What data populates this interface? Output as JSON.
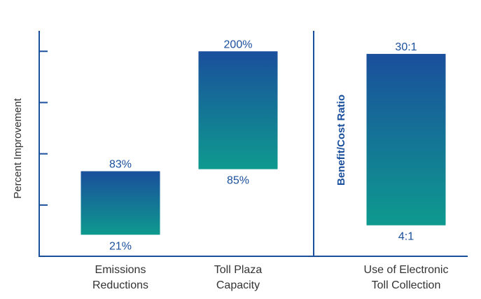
{
  "chart_data": {
    "type": "bar",
    "subtype": "range",
    "ylabel": "Percent Improvement",
    "series_color_top": "#1a4f9c",
    "series_color_bottom": "#0e9a8f",
    "axis_color": "#1a4f9c",
    "text_color": "#1a4f9c",
    "panels": [
      {
        "name": "percent",
        "ylim": [
          0,
          220
        ],
        "ticks": [
          0,
          50,
          100,
          150,
          200
        ],
        "bars": [
          {
            "category": [
              "Emissions",
              "Reductions"
            ],
            "low": 21,
            "high": 83,
            "low_label": "21%",
            "high_label": "83%"
          },
          {
            "category": [
              "Toll Plaza",
              "Capacity"
            ],
            "low": 85,
            "high": 200,
            "low_label": "85%",
            "high_label": "200%"
          }
        ]
      },
      {
        "name": "ratio",
        "ylabel": "Benefit/Cost Ratio",
        "ylim": [
          -0.7,
          33.5
        ],
        "bars": [
          {
            "category": [
              "Use of Electronic",
              "Toll Collection"
            ],
            "low": 4,
            "high": 30,
            "low_label": "4:1",
            "high_label": "30:1"
          }
        ]
      }
    ]
  }
}
